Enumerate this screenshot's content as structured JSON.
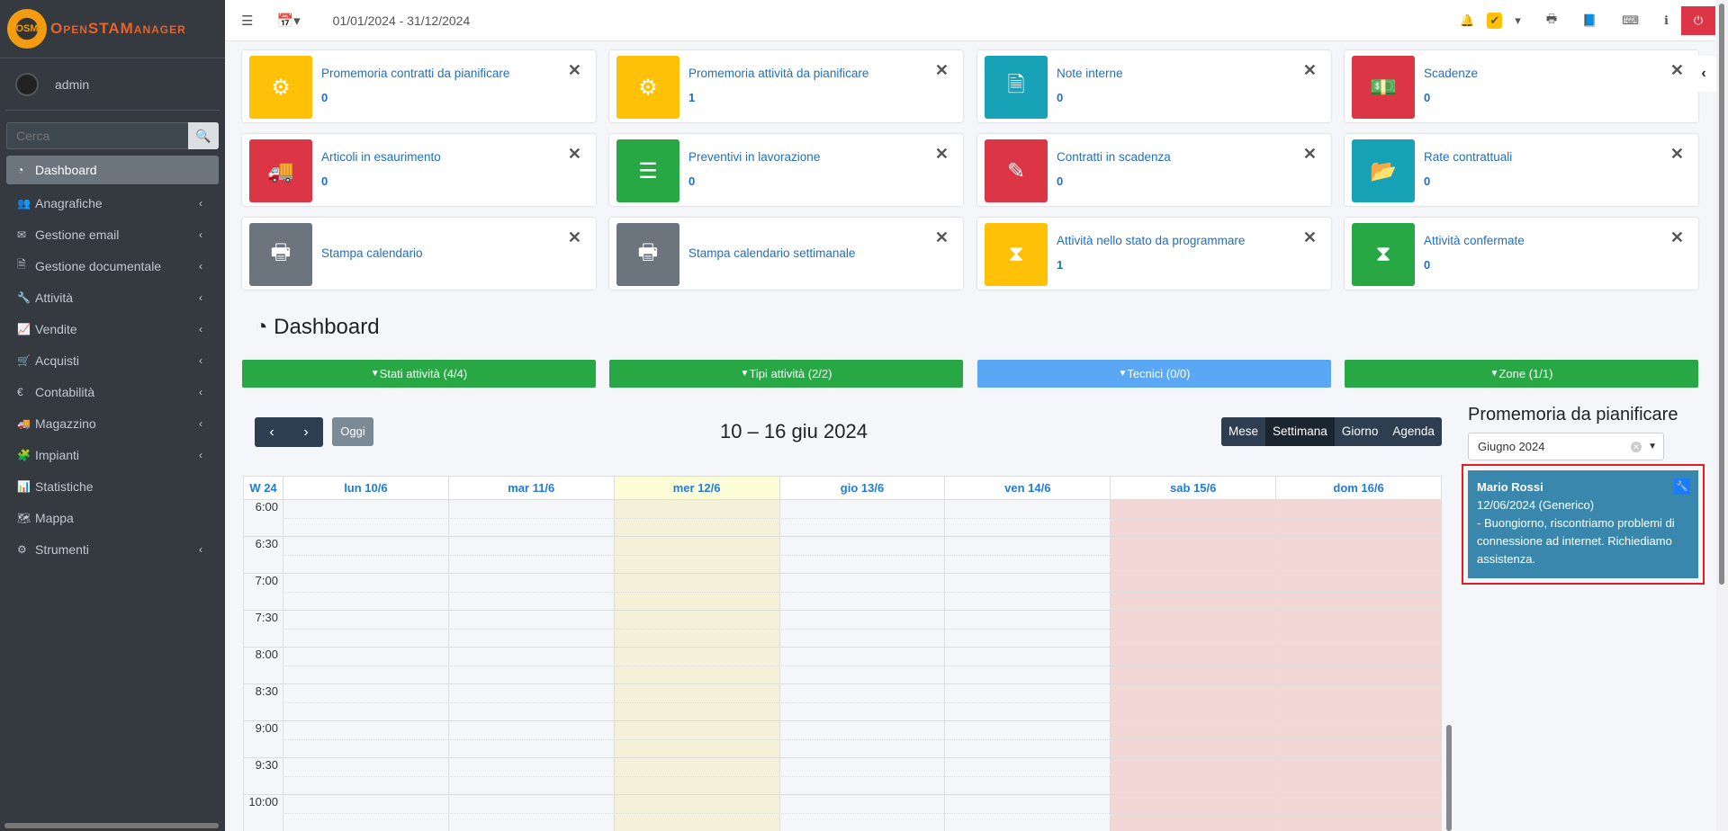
{
  "brand": {
    "logo_text": "OpenSTAManager",
    "logo_badge": "OSM"
  },
  "user": {
    "name": "admin"
  },
  "search": {
    "placeholder": "Cerca"
  },
  "sidebar": {
    "items": [
      {
        "label": "Dashboard",
        "icon": "dashboard-icon",
        "glyph": "◔",
        "active": true,
        "chevron": false
      },
      {
        "label": "Anagrafiche",
        "icon": "users-icon",
        "glyph": "👥",
        "chevron": true
      },
      {
        "label": "Gestione email",
        "icon": "envelope-icon",
        "glyph": "✉",
        "chevron": true
      },
      {
        "label": "Gestione documentale",
        "icon": "file-icon",
        "glyph": "🗎",
        "chevron": true
      },
      {
        "label": "Attività",
        "icon": "wrench-icon",
        "glyph": "🔧",
        "chevron": true
      },
      {
        "label": "Vendite",
        "icon": "line-chart-icon",
        "glyph": "📈",
        "chevron": true
      },
      {
        "label": "Acquisti",
        "icon": "cart-icon",
        "glyph": "🛒",
        "chevron": true
      },
      {
        "label": "Contabilità",
        "icon": "euro-icon",
        "glyph": "€",
        "chevron": true
      },
      {
        "label": "Magazzino",
        "icon": "truck-icon",
        "glyph": "🚚",
        "chevron": true
      },
      {
        "label": "Impianti",
        "icon": "puzzle-icon",
        "glyph": "🧩",
        "chevron": true
      },
      {
        "label": "Statistiche",
        "icon": "bar-chart-icon",
        "glyph": "📊",
        "chevron": false
      },
      {
        "label": "Mappa",
        "icon": "map-icon",
        "glyph": "🗺",
        "chevron": false
      },
      {
        "label": "Strumenti",
        "icon": "cog-icon",
        "glyph": "⚙",
        "chevron": true
      }
    ]
  },
  "topbar": {
    "period": "01/01/2024 - 31/12/2024"
  },
  "widgets": [
    {
      "title": "Promemoria contratti da pianificare",
      "count": "0",
      "color": "#ffc107",
      "icon": "cog-icon",
      "glyph": "⚙"
    },
    {
      "title": "Promemoria attività da pianificare",
      "count": "1",
      "color": "#ffc107",
      "icon": "cogs-icon",
      "glyph": "⚙"
    },
    {
      "title": "Note interne",
      "count": "0",
      "color": "#17a2b8",
      "icon": "file-text-icon",
      "glyph": "🗎"
    },
    {
      "title": "Scadenze",
      "count": "0",
      "color": "#dc3545",
      "icon": "money-icon",
      "glyph": "💵"
    },
    {
      "title": "Articoli in esaurimento",
      "count": "0",
      "color": "#dc3545",
      "icon": "truck-icon",
      "glyph": "🚚"
    },
    {
      "title": "Preventivi in lavorazione",
      "count": "0",
      "color": "#28a745",
      "icon": "server-icon",
      "glyph": "☰"
    },
    {
      "title": "Contratti in scadenza",
      "count": "0",
      "color": "#dc3545",
      "icon": "edit-icon",
      "glyph": "✎"
    },
    {
      "title": "Rate contrattuali",
      "count": "0",
      "color": "#17a2b8",
      "icon": "folder-open-icon",
      "glyph": "📂"
    },
    {
      "title": "Stampa calendario",
      "count": "",
      "color": "#6c757d",
      "icon": "print-icon",
      "glyph": "🖶"
    },
    {
      "title": "Stampa calendario settimanale",
      "count": "",
      "color": "#6c757d",
      "icon": "print-icon",
      "glyph": "🖶"
    },
    {
      "title": "Attività nello stato da programmare",
      "count": "1",
      "color": "#ffc107",
      "icon": "hourglass-icon",
      "glyph": "⧗"
    },
    {
      "title": "Attività confermate",
      "count": "0",
      "color": "#28a745",
      "icon": "hourglass-icon",
      "glyph": "⧗"
    }
  ],
  "page_title": "Dashboard",
  "filters": [
    {
      "label": "Stati attività (4/4)",
      "color": "#28a745"
    },
    {
      "label": "Tipi attività (2/2)",
      "color": "#28a745"
    },
    {
      "label": "Tecnici (0/0)",
      "color": "#5aa7f5"
    },
    {
      "label": "Zone (1/1)",
      "color": "#28a745"
    }
  ],
  "calendar": {
    "title": "10 – 16 giu 2024",
    "today_label": "Oggi",
    "views": [
      "Mese",
      "Settimana",
      "Giorno",
      "Agenda"
    ],
    "active_view": "Settimana",
    "week_label": "W 24",
    "days": [
      "lun 10/6",
      "mar 11/6",
      "mer 12/6",
      "gio 13/6",
      "ven 14/6",
      "sab 15/6",
      "dom 16/6"
    ],
    "today_index": 2,
    "weekend_indices": [
      5,
      6
    ],
    "times": [
      "6:00",
      "6:30",
      "7:00",
      "7:30",
      "8:00",
      "8:30",
      "9:00",
      "9:30",
      "10:00",
      ""
    ]
  },
  "reminders": {
    "title": "Promemoria da pianificare",
    "month_select": "Giugno 2024",
    "items": [
      {
        "name": "Mario Rossi",
        "date": "12/06/2024 (Generico)",
        "description": "- Buongiorno, riscontriamo problemi di connessione ad internet. Richiediamo assistenza.",
        "color": "#3a87ad"
      }
    ]
  }
}
